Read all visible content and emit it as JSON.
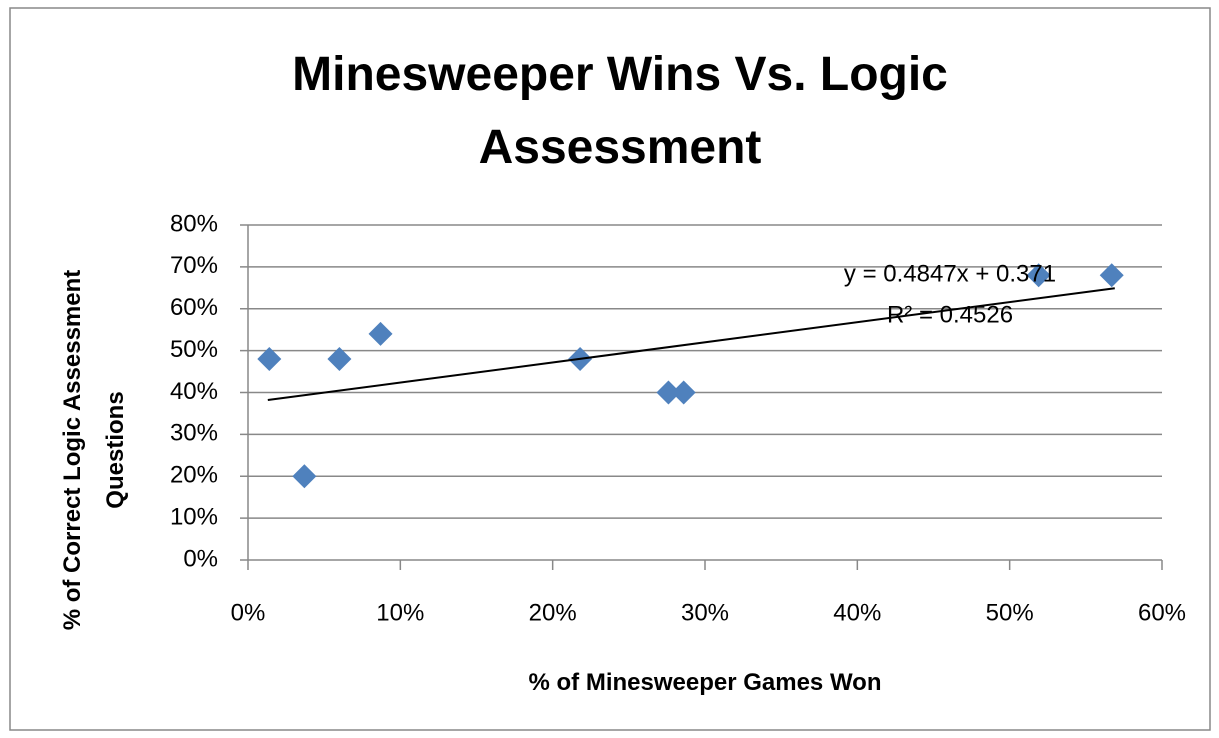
{
  "chart_data": {
    "type": "scatter",
    "title": "Minesweeper Wins Vs. Logic Assessment",
    "xlabel": "% of Minesweeper Games Won",
    "ylabel": "% of Correct Logic Assessment Questions",
    "x": [
      1.4,
      3.7,
      6.0,
      8.7,
      21.8,
      27.6,
      28.6,
      51.9,
      56.7
    ],
    "values": [
      48,
      20,
      48,
      54,
      48,
      40,
      40,
      68,
      68
    ],
    "color": "#4f81bd",
    "xlim": [
      0,
      60
    ],
    "ylim": [
      0,
      80
    ],
    "xticks": [
      {
        "value": 0,
        "label": "0%"
      },
      {
        "value": 10,
        "label": "10%"
      },
      {
        "value": 20,
        "label": "20%"
      },
      {
        "value": 30,
        "label": "30%"
      },
      {
        "value": 40,
        "label": "40%"
      },
      {
        "value": 50,
        "label": "50%"
      },
      {
        "value": 60,
        "label": "60%"
      }
    ],
    "yticks": [
      {
        "value": 0,
        "label": "0%"
      },
      {
        "value": 10,
        "label": "10%"
      },
      {
        "value": 20,
        "label": "20%"
      },
      {
        "value": 30,
        "label": "30%"
      },
      {
        "value": 40,
        "label": "40%"
      },
      {
        "value": 50,
        "label": "50%"
      },
      {
        "value": 60,
        "label": "60%"
      },
      {
        "value": 70,
        "label": "70%"
      },
      {
        "value": 80,
        "label": "80%"
      }
    ],
    "grid": true,
    "trendline": {
      "x": [
        1.3,
        56.9
      ],
      "values": [
        38.2,
        64.9
      ],
      "color": "#000000"
    },
    "annotations": [
      "y = 0.4847x + 0.371",
      "R² = 0.4526"
    ]
  }
}
